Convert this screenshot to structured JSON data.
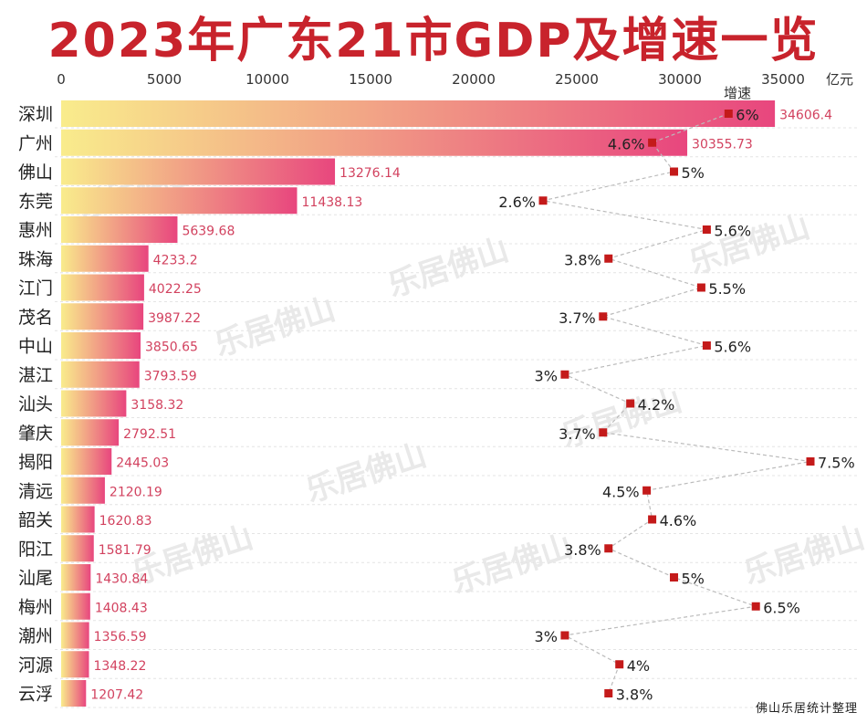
{
  "title": "2023年广东21市GDP及增速一览",
  "source_note": "佛山乐居统计整理",
  "watermark": "乐居佛山",
  "colors": {
    "title": "#c8232c",
    "bar_start": "#f9ec8c",
    "bar_end": "#e8467e",
    "value_label": "#d2425f",
    "growth_marker": "#c41a1a",
    "growth_line": "#bbbbbb"
  },
  "chart_data": {
    "type": "bar",
    "orientation": "horizontal",
    "xlabel": "亿元",
    "xlim": [
      0,
      35000
    ],
    "xticks": [
      0,
      5000,
      10000,
      15000,
      20000,
      25000,
      30000,
      35000
    ],
    "grid": "horizontal dashed row guides",
    "categories": [
      "深圳",
      "广州",
      "佛山",
      "东莞",
      "惠州",
      "珠海",
      "江门",
      "茂名",
      "中山",
      "湛江",
      "汕头",
      "肇庆",
      "揭阳",
      "清远",
      "韶关",
      "阳江",
      "汕尾",
      "梅州",
      "潮州",
      "河源",
      "云浮"
    ],
    "series": [
      {
        "values": [
          34606.4,
          30355.73,
          13276.14,
          11438.13,
          5639.68,
          4233.2,
          4022.25,
          3987.22,
          3850.65,
          3793.59,
          3158.32,
          2792.51,
          2445.03,
          2120.19,
          1620.83,
          1581.79,
          1430.84,
          1408.43,
          1356.59,
          1348.22,
          1207.42
        ],
        "value_labels": [
          "34606.4",
          "30355.73",
          "13276.14",
          "11438.13",
          "5639.68",
          "4233.2",
          "4022.25",
          "3987.22",
          "3850.65",
          "3793.59",
          "3158.32",
          "2792.51",
          "2445.03",
          "2120.19",
          "1620.83",
          "1581.79",
          "1430.84",
          "1408.43",
          "1356.59",
          "1348.22",
          "1207.42"
        ]
      },
      {
        "name": "增速",
        "type": "line",
        "values": [
          6,
          4.6,
          5,
          2.6,
          5.6,
          3.8,
          5.5,
          3.7,
          5.6,
          3,
          4.2,
          3.7,
          7.5,
          4.5,
          4.6,
          3.8,
          5,
          6.5,
          3,
          4,
          3.8
        ],
        "value_labels": [
          "6%",
          "4.6%",
          "5%",
          "2.6%",
          "5.6%",
          "3.8%",
          "5.5%",
          "3.7%",
          "5.6%",
          "3%",
          "4.2%",
          "3.7%",
          "7.5%",
          "4.5%",
          "4.6%",
          "3.8%",
          "5%",
          "6.5%",
          "3%",
          "4%",
          "3.8%"
        ],
        "label_side": [
          "right",
          "left",
          "right",
          "left",
          "right",
          "left",
          "right",
          "left",
          "right",
          "left",
          "right",
          "left",
          "right",
          "left",
          "right",
          "left",
          "right",
          "right",
          "left",
          "right",
          "right"
        ]
      }
    ]
  }
}
